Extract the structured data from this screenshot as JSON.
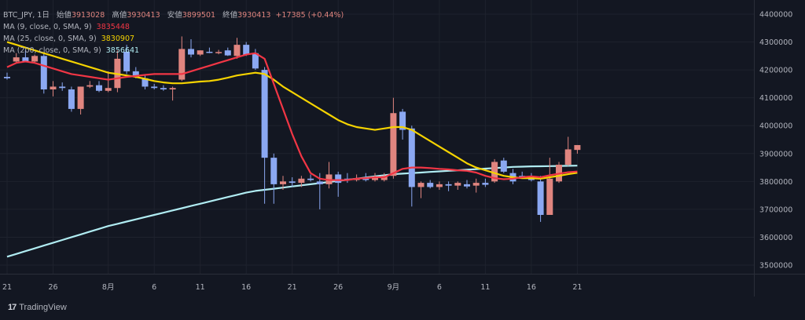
{
  "header": {
    "symbol": "BTC_JPY, 1日",
    "open_label": "始値",
    "open": "3913028",
    "high_label": "高値",
    "high": "3930413",
    "low_label": "安値",
    "low": "3899501",
    "close_label": "終値",
    "close": "3930413",
    "change": "+17385 (+0.44%)"
  },
  "indicators": [
    {
      "label": "MA (9, close, 0, SMA, 9)",
      "value": "3835448",
      "color": "#f23645"
    },
    {
      "label": "MA (25, close, 0, SMA, 9)",
      "value": "3830907",
      "color": "#f5d300"
    },
    {
      "label": "MA (200, close, 0, SMA, 9)",
      "value": "3856641",
      "color": "#b0ecf2"
    }
  ],
  "footer": {
    "brand": "TradingView",
    "logo": "17"
  },
  "colors": {
    "up": "#e0857f",
    "down": "#8ba8f2",
    "background": "#131722",
    "grid": "#1e222d"
  },
  "chart_data": {
    "type": "candlestick",
    "y_axis": {
      "ticks": [
        "4400000",
        "4300000",
        "4200000",
        "4100000",
        "4000000",
        "3900000",
        "3800000",
        "3700000",
        "3600000",
        "3500000"
      ],
      "ylim": [
        3460000,
        4420000
      ]
    },
    "x_axis": {
      "ticks": [
        {
          "label": "21",
          "index": 0
        },
        {
          "label": "26",
          "index": 5
        },
        {
          "label": "8月",
          "index": 11
        },
        {
          "label": "6",
          "index": 16
        },
        {
          "label": "11",
          "index": 21
        },
        {
          "label": "16",
          "index": 26
        },
        {
          "label": "21",
          "index": 31
        },
        {
          "label": "26",
          "index": 36
        },
        {
          "label": "9月",
          "index": 42
        },
        {
          "label": "6",
          "index": 47
        },
        {
          "label": "11",
          "index": 52
        },
        {
          "label": "16",
          "index": 57
        },
        {
          "label": "21",
          "index": 62
        }
      ]
    },
    "candles": [
      {
        "o": 4175000,
        "h": 4190000,
        "l": 4165000,
        "c": 4170000
      },
      {
        "o": 4230000,
        "h": 4260000,
        "l": 4225000,
        "c": 4245000
      },
      {
        "o": 4245000,
        "h": 4270000,
        "l": 4235000,
        "c": 4230000
      },
      {
        "o": 4230000,
        "h": 4255000,
        "l": 4225000,
        "c": 4250000
      },
      {
        "o": 4250000,
        "h": 4260000,
        "l": 4115000,
        "c": 4130000
      },
      {
        "o": 4130000,
        "h": 4160000,
        "l": 4105000,
        "c": 4140000
      },
      {
        "o": 4140000,
        "h": 4155000,
        "l": 4125000,
        "c": 4135000
      },
      {
        "o": 4130000,
        "h": 4140000,
        "l": 4050000,
        "c": 4060000
      },
      {
        "o": 4060000,
        "h": 4140000,
        "l": 4040000,
        "c": 4140000
      },
      {
        "o": 4140000,
        "h": 4160000,
        "l": 4135000,
        "c": 4145000
      },
      {
        "o": 4145000,
        "h": 4160000,
        "l": 4120000,
        "c": 4125000
      },
      {
        "o": 4125000,
        "h": 4195000,
        "l": 4120000,
        "c": 4135000
      },
      {
        "o": 4135000,
        "h": 4270000,
        "l": 4120000,
        "c": 4240000
      },
      {
        "o": 4265000,
        "h": 4290000,
        "l": 4185000,
        "c": 4195000
      },
      {
        "o": 4195000,
        "h": 4210000,
        "l": 4170000,
        "c": 4175000
      },
      {
        "o": 4170000,
        "h": 4180000,
        "l": 4130000,
        "c": 4140000
      },
      {
        "o": 4140000,
        "h": 4150000,
        "l": 4130000,
        "c": 4135000
      },
      {
        "o": 4135000,
        "h": 4145000,
        "l": 4125000,
        "c": 4130000
      },
      {
        "o": 4130000,
        "h": 4140000,
        "l": 4090000,
        "c": 4135000
      },
      {
        "o": 4165000,
        "h": 4320000,
        "l": 4160000,
        "c": 4275000
      },
      {
        "o": 4275000,
        "h": 4310000,
        "l": 4245000,
        "c": 4255000
      },
      {
        "o": 4255000,
        "h": 4270000,
        "l": 4250000,
        "c": 4270000
      },
      {
        "o": 4265000,
        "h": 4280000,
        "l": 4260000,
        "c": 4262000
      },
      {
        "o": 4262000,
        "h": 4272000,
        "l": 4256000,
        "c": 4264000
      },
      {
        "o": 4270000,
        "h": 4280000,
        "l": 4250000,
        "c": 4252000
      },
      {
        "o": 4250000,
        "h": 4315000,
        "l": 4240000,
        "c": 4290000
      },
      {
        "o": 4290000,
        "h": 4300000,
        "l": 4250000,
        "c": 4255000
      },
      {
        "o": 4260000,
        "h": 4275000,
        "l": 4200000,
        "c": 4205000
      },
      {
        "o": 4200000,
        "h": 4210000,
        "l": 3720000,
        "c": 3885000
      },
      {
        "o": 3885000,
        "h": 3900000,
        "l": 3720000,
        "c": 3790000
      },
      {
        "o": 3790000,
        "h": 3820000,
        "l": 3770000,
        "c": 3800000
      },
      {
        "o": 3800000,
        "h": 3815000,
        "l": 3780000,
        "c": 3795000
      },
      {
        "o": 3795000,
        "h": 3820000,
        "l": 3780000,
        "c": 3810000
      },
      {
        "o": 3810000,
        "h": 3825000,
        "l": 3800000,
        "c": 3805000
      },
      {
        "o": 3800000,
        "h": 3830000,
        "l": 3700000,
        "c": 3790000
      },
      {
        "o": 3790000,
        "h": 3870000,
        "l": 3775000,
        "c": 3825000
      },
      {
        "o": 3825000,
        "h": 3835000,
        "l": 3745000,
        "c": 3795000
      },
      {
        "o": 3810000,
        "h": 3830000,
        "l": 3795000,
        "c": 3805000
      },
      {
        "o": 3805000,
        "h": 3825000,
        "l": 3800000,
        "c": 3810000
      },
      {
        "o": 3810000,
        "h": 3830000,
        "l": 3800000,
        "c": 3805000
      },
      {
        "o": 3805000,
        "h": 3830000,
        "l": 3800000,
        "c": 3815000
      },
      {
        "o": 3805000,
        "h": 3830000,
        "l": 3800000,
        "c": 3820000
      },
      {
        "o": 3820000,
        "h": 4100000,
        "l": 3810000,
        "c": 4045000
      },
      {
        "o": 4050000,
        "h": 4060000,
        "l": 3950000,
        "c": 3985000
      },
      {
        "o": 3990000,
        "h": 4000000,
        "l": 3710000,
        "c": 3780000
      },
      {
        "o": 3780000,
        "h": 3800000,
        "l": 3740000,
        "c": 3795000
      },
      {
        "o": 3795000,
        "h": 3805000,
        "l": 3775000,
        "c": 3780000
      },
      {
        "o": 3780000,
        "h": 3800000,
        "l": 3770000,
        "c": 3790000
      },
      {
        "o": 3790000,
        "h": 3800000,
        "l": 3765000,
        "c": 3785000
      },
      {
        "o": 3785000,
        "h": 3800000,
        "l": 3770000,
        "c": 3795000
      },
      {
        "o": 3790000,
        "h": 3805000,
        "l": 3775000,
        "c": 3782000
      },
      {
        "o": 3785000,
        "h": 3810000,
        "l": 3760000,
        "c": 3795000
      },
      {
        "o": 3795000,
        "h": 3810000,
        "l": 3780000,
        "c": 3788000
      },
      {
        "o": 3800000,
        "h": 3880000,
        "l": 3795000,
        "c": 3870000
      },
      {
        "o": 3875000,
        "h": 3885000,
        "l": 3830000,
        "c": 3835000
      },
      {
        "o": 3830000,
        "h": 3845000,
        "l": 3790000,
        "c": 3800000
      },
      {
        "o": 3820000,
        "h": 3835000,
        "l": 3810000,
        "c": 3815000
      },
      {
        "o": 3815000,
        "h": 3830000,
        "l": 3800000,
        "c": 3805000
      },
      {
        "o": 3800000,
        "h": 3820000,
        "l": 3655000,
        "c": 3680000
      },
      {
        "o": 3680000,
        "h": 3885000,
        "l": 3680000,
        "c": 3810000
      },
      {
        "o": 3800000,
        "h": 3870000,
        "l": 3795000,
        "c": 3860000
      },
      {
        "o": 3860000,
        "h": 3960000,
        "l": 3855000,
        "c": 3915000
      },
      {
        "o": 3913028,
        "h": 3930413,
        "l": 3899501,
        "c": 3930413
      }
    ],
    "ma9": [
      4210000,
      4225000,
      4230000,
      4225000,
      4215000,
      4205000,
      4195000,
      4185000,
      4180000,
      4175000,
      4170000,
      4165000,
      4170000,
      4175000,
      4178000,
      4182000,
      4185000,
      4185000,
      4185000,
      4185000,
      4195000,
      4205000,
      4215000,
      4225000,
      4235000,
      4245000,
      4255000,
      4260000,
      4240000,
      4150000,
      4060000,
      3970000,
      3890000,
      3830000,
      3810000,
      3805000,
      3805000,
      3805000,
      3810000,
      3812000,
      3815000,
      3815000,
      3830000,
      3845000,
      3850000,
      3850000,
      3848000,
      3845000,
      3843000,
      3840000,
      3838000,
      3832000,
      3820000,
      3812000,
      3808000,
      3810000,
      3815000,
      3818000,
      3815000,
      3822000,
      3828000,
      3833000,
      3835448
    ],
    "ma25": [
      4300000,
      4290000,
      4280000,
      4270000,
      4260000,
      4250000,
      4240000,
      4230000,
      4220000,
      4210000,
      4200000,
      4190000,
      4185000,
      4180000,
      4175000,
      4168000,
      4160000,
      4155000,
      4152000,
      4152000,
      4155000,
      4158000,
      4160000,
      4165000,
      4172000,
      4180000,
      4185000,
      4190000,
      4185000,
      4165000,
      4140000,
      4120000,
      4100000,
      4080000,
      4060000,
      4040000,
      4020000,
      4005000,
      3995000,
      3990000,
      3985000,
      3990000,
      3995000,
      3995000,
      3985000,
      3965000,
      3945000,
      3925000,
      3905000,
      3885000,
      3865000,
      3850000,
      3840000,
      3830000,
      3820000,
      3815000,
      3812000,
      3812000,
      3810000,
      3815000,
      3820000,
      3826000,
      3830907
    ],
    "ma200": [
      3530000,
      3540000,
      3550000,
      3560000,
      3570000,
      3580000,
      3590000,
      3600000,
      3610000,
      3620000,
      3630000,
      3640000,
      3648000,
      3656000,
      3664000,
      3672000,
      3680000,
      3688000,
      3696000,
      3704000,
      3712000,
      3720000,
      3728000,
      3736000,
      3744000,
      3752000,
      3760000,
      3766000,
      3770000,
      3774000,
      3778000,
      3782000,
      3786000,
      3790000,
      3794000,
      3798000,
      3802000,
      3806000,
      3810000,
      3814000,
      3818000,
      3822000,
      3826000,
      3828000,
      3830000,
      3832000,
      3834000,
      3836000,
      3838000,
      3840000,
      3842000,
      3844000,
      3846000,
      3848000,
      3850000,
      3852000,
      3853000,
      3854000,
      3854500,
      3855000,
      3855500,
      3856000,
      3856641
    ]
  }
}
